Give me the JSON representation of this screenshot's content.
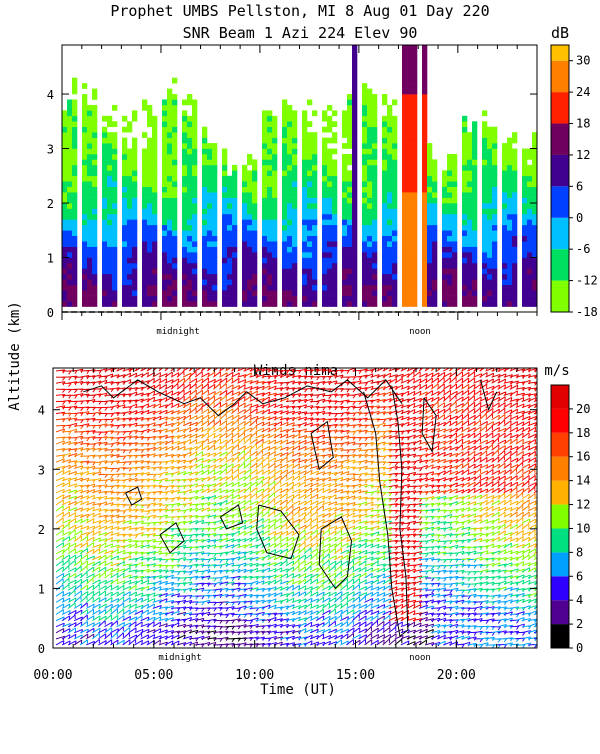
{
  "header": {
    "line1": "Prophet  UMBS Pellston, MI   8 Aug 01 Day 220",
    "line2": "SNR Beam 1 Azi 224 Elev 90"
  },
  "shared": {
    "ylabel": "Altitude (km)",
    "xlabel": "Time (UT)",
    "midnight_label": "midnight",
    "noon_label": "noon"
  },
  "colors": {
    "snr_scale": [
      "#80ff00",
      "#00e060",
      "#00c0ff",
      "#0040ff",
      "#400090",
      "#700060",
      "#ff2000",
      "#ff8000",
      "#ffc000"
    ],
    "wind_scale": [
      "#000000",
      "#500090",
      "#3000ff",
      "#00a0ff",
      "#00e080",
      "#80ff00",
      "#ffb000",
      "#ff8000",
      "#ff4000",
      "#ff0000",
      "#e00000"
    ]
  },
  "chart_data": [
    {
      "type": "heatmap",
      "title": "SNR Beam 1 Azi 224 Elev 90",
      "ylabel": "Altitude (km)",
      "ylim": [
        0,
        4.9
      ],
      "yticks": [
        0,
        1,
        2,
        3,
        4
      ],
      "xlim": [
        0,
        24
      ],
      "colorbar": {
        "unit": "dB",
        "ticks": [
          -18,
          -12,
          -6,
          0,
          6,
          12,
          18,
          24,
          30
        ],
        "range": [
          -18,
          33
        ]
      },
      "profile": [
        {
          "alt": 0.2,
          "snr": 12
        },
        {
          "alt": 0.6,
          "snr": 9
        },
        {
          "alt": 1.0,
          "snr": 5
        },
        {
          "alt": 1.4,
          "snr": 0
        },
        {
          "alt": 1.8,
          "snr": -6
        },
        {
          "alt": 2.2,
          "snr": -10
        },
        {
          "alt": 2.7,
          "snr": -13
        },
        {
          "alt": 3.2,
          "snr": -15
        },
        {
          "alt": 3.8,
          "snr": -17
        }
      ],
      "annotations": [
        {
          "x": 6.5,
          "label": "midnight"
        },
        {
          "x": 18.5,
          "label": "noon"
        }
      ]
    },
    {
      "type": "heatmap",
      "title": "Winds nima",
      "ylabel": "Altitude (km)",
      "xlabel": "Time (UT)",
      "ylim": [
        0,
        4.7
      ],
      "yticks": [
        0,
        1,
        2,
        3,
        4
      ],
      "xlim": [
        0,
        24
      ],
      "xticks": [
        0,
        5,
        10,
        15,
        20
      ],
      "xtick_labels": [
        "00:00",
        "05:00",
        "10:00",
        "15:00",
        "20:00"
      ],
      "colorbar": {
        "unit": "m/s",
        "ticks": [
          0,
          2,
          4,
          6,
          8,
          10,
          12,
          14,
          16,
          18,
          20
        ],
        "range": [
          0,
          22
        ]
      },
      "profile": [
        {
          "alt": 0.2,
          "speed": 4
        },
        {
          "alt": 0.6,
          "speed": 6
        },
        {
          "alt": 1.0,
          "speed": 8
        },
        {
          "alt": 1.6,
          "speed": 10
        },
        {
          "alt": 2.2,
          "speed": 12
        },
        {
          "alt": 2.8,
          "speed": 13
        },
        {
          "alt": 3.4,
          "speed": 15
        },
        {
          "alt": 4.0,
          "speed": 18
        },
        {
          "alt": 4.5,
          "speed": 20
        }
      ],
      "annotations": [
        {
          "x": 6.5,
          "label": "midnight"
        },
        {
          "x": 18.5,
          "label": "noon"
        }
      ]
    }
  ]
}
